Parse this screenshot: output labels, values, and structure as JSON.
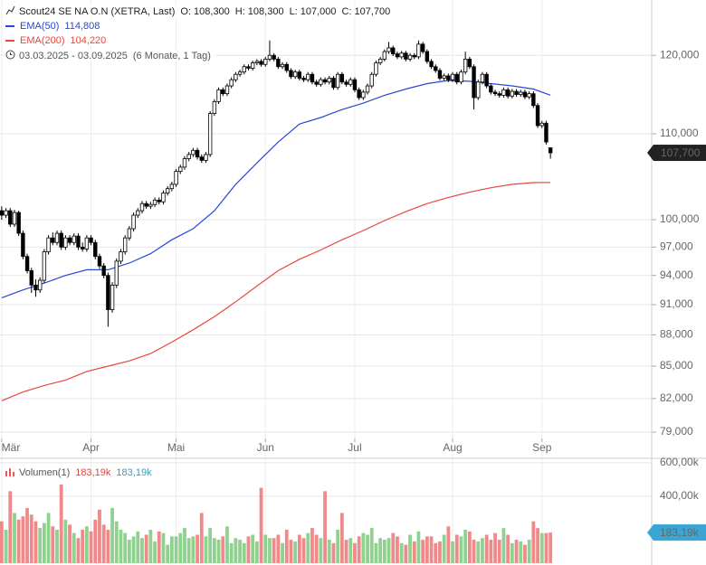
{
  "chart_data": {
    "type": "candlestick",
    "header": {
      "title": "Scout24 SE NA O.N (XETRA, Last)",
      "ohlc": [
        {
          "key": "O:",
          "value": "108,300"
        },
        {
          "key": "H:",
          "value": "108,300"
        },
        {
          "key": "L:",
          "value": "107,000"
        },
        {
          "key": "C:",
          "value": "107,700"
        }
      ],
      "ema": [
        {
          "name": "EMA(50)",
          "value": "114,808"
        },
        {
          "name": "EMA(200)",
          "value": "104,220"
        }
      ],
      "range": "03.03.2025 - 03.09.2025",
      "period": "(6 Monate, 1 Tag)"
    },
    "log_scale": true,
    "grid": true,
    "ylim": [
      78.45,
      127.6
    ],
    "yticks": [
      {
        "value": 79,
        "label": "79,000"
      },
      {
        "value": 82,
        "label": "82,000"
      },
      {
        "value": 85,
        "label": "85,000"
      },
      {
        "value": 88,
        "label": "88,000"
      },
      {
        "value": 91,
        "label": "91,000"
      },
      {
        "value": 94,
        "label": "94,000"
      },
      {
        "value": 97,
        "label": "97,000"
      },
      {
        "value": 100,
        "label": "100,000"
      },
      {
        "value": 110,
        "label": "110,000"
      },
      {
        "value": 120,
        "label": "120,000"
      }
    ],
    "xlim": [
      -0.4,
      152.8
    ],
    "xticks": [
      {
        "value": 0,
        "label": "Mär"
      },
      {
        "value": 21,
        "label": "Apr"
      },
      {
        "value": 41,
        "label": "Mai"
      },
      {
        "value": 62,
        "label": "Jun"
      },
      {
        "value": 83,
        "label": "Jul"
      },
      {
        "value": 106,
        "label": "Aug"
      },
      {
        "value": 127,
        "label": "Sep"
      }
    ],
    "last_price": {
      "value": 107.7,
      "label": "107,700"
    },
    "up_color": "#ffffff",
    "down_color": "#000000",
    "candles": [
      [
        101,
        101.5,
        100,
        100.5
      ],
      [
        100.5,
        101.3,
        100.2,
        101
      ],
      [
        101,
        101.3,
        99.2,
        99.5
      ],
      [
        99.5,
        101.1,
        99.2,
        100.8
      ],
      [
        100.8,
        101,
        98.2,
        98.5
      ],
      [
        98.5,
        98.8,
        95.7,
        96
      ],
      [
        96,
        96.3,
        94.2,
        94.5
      ],
      [
        94.5,
        94.8,
        92.2,
        93
      ],
      [
        93,
        93.6,
        91.8,
        92.5
      ],
      [
        92.5,
        93.8,
        92.2,
        93.5
      ],
      [
        93.5,
        96.8,
        93.2,
        96.5
      ],
      [
        96.5,
        98.3,
        96.2,
        98
      ],
      [
        98,
        98.6,
        97.2,
        97.5
      ],
      [
        97.5,
        98.8,
        97.2,
        98.5
      ],
      [
        98.5,
        98.8,
        96.7,
        97
      ],
      [
        97,
        98.3,
        96.7,
        98
      ],
      [
        98,
        98.3,
        97.2,
        97.5
      ],
      [
        97.5,
        98.5,
        97.2,
        98.2
      ],
      [
        98.2,
        98.5,
        96.7,
        97
      ],
      [
        97,
        97.5,
        96.5,
        96.8
      ],
      [
        96.8,
        98.3,
        96.5,
        98
      ],
      [
        98,
        98.3,
        97.2,
        97.5
      ],
      [
        97.5,
        97.8,
        95.7,
        96
      ],
      [
        96,
        96.3,
        94.7,
        95
      ],
      [
        95,
        95.3,
        93.7,
        94
      ],
      [
        94,
        94.3,
        88.8,
        90.5
      ],
      [
        90.5,
        93.3,
        90.2,
        93
      ],
      [
        93,
        95.8,
        92.7,
        95.5
      ],
      [
        95.5,
        96.8,
        95.2,
        96.5
      ],
      [
        96.5,
        98.3,
        96.2,
        98
      ],
      [
        98,
        99.3,
        97.7,
        99
      ],
      [
        99,
        100.8,
        98.7,
        100.5
      ],
      [
        100.5,
        101.3,
        100.2,
        101
      ],
      [
        101,
        102.1,
        100.7,
        101.8
      ],
      [
        101.8,
        102.1,
        101.2,
        101.5
      ],
      [
        101.5,
        102,
        101.2,
        101.7
      ],
      [
        101.7,
        102.5,
        101.4,
        102.2
      ],
      [
        102.2,
        102.5,
        101.7,
        102
      ],
      [
        102,
        103.3,
        101.7,
        103
      ],
      [
        103,
        103.8,
        102.7,
        103.5
      ],
      [
        103.5,
        104.3,
        103.2,
        104
      ],
      [
        104,
        105.8,
        103.7,
        105.5
      ],
      [
        105.5,
        106.3,
        105.2,
        106
      ],
      [
        106,
        107.3,
        105.7,
        107
      ],
      [
        107,
        107.8,
        106.7,
        107.5
      ],
      [
        107.5,
        108.3,
        107.2,
        108
      ],
      [
        108,
        108.3,
        106.9,
        107.2
      ],
      [
        107.2,
        107.5,
        106.5,
        106.8
      ],
      [
        106.8,
        107.8,
        106.5,
        107.5
      ],
      [
        107.5,
        112.8,
        107.2,
        112.5
      ],
      [
        112.5,
        114.3,
        112.2,
        114
      ],
      [
        114,
        115.8,
        113.7,
        115.5
      ],
      [
        115.5,
        115.8,
        114.7,
        115
      ],
      [
        115,
        116.3,
        114.7,
        116
      ],
      [
        116,
        117.1,
        115.7,
        116.8
      ],
      [
        116.8,
        117.8,
        116.5,
        117.5
      ],
      [
        117.5,
        118.1,
        117.2,
        117.8
      ],
      [
        117.8,
        118.8,
        117.5,
        118.5
      ],
      [
        118.5,
        118.8,
        118,
        118.3
      ],
      [
        118.3,
        119.3,
        118,
        119
      ],
      [
        119,
        119.5,
        118.7,
        119.2
      ],
      [
        119.2,
        119.5,
        118.5,
        118.8
      ],
      [
        118.8,
        119.8,
        118.5,
        119.5
      ],
      [
        119.5,
        122,
        119.2,
        120
      ],
      [
        120,
        120.3,
        119.2,
        119.5
      ],
      [
        119.5,
        119.8,
        118.2,
        118.5
      ],
      [
        118.5,
        119.1,
        118.2,
        118.8
      ],
      [
        118.8,
        119.1,
        117.7,
        118
      ],
      [
        118,
        118.3,
        116.9,
        117.2
      ],
      [
        117.2,
        118.1,
        116.9,
        117.8
      ],
      [
        117.8,
        118.1,
        116.7,
        117
      ],
      [
        117,
        117.3,
        116.5,
        116.8
      ],
      [
        116.8,
        117.8,
        116.5,
        117.5
      ],
      [
        117.5,
        117.8,
        116.2,
        116.5
      ],
      [
        116.5,
        116.8,
        115.9,
        116.2
      ],
      [
        116.2,
        117.1,
        115.9,
        116.8
      ],
      [
        116.8,
        117.1,
        116.2,
        116.5
      ],
      [
        116.5,
        117.3,
        116.2,
        117
      ],
      [
        117,
        117.3,
        115.5,
        115.8
      ],
      [
        115.8,
        117.8,
        115.5,
        117.5
      ],
      [
        117.5,
        117.8,
        116.2,
        116.5
      ],
      [
        116.5,
        116.8,
        115.9,
        116.2
      ],
      [
        116.2,
        117.1,
        115.9,
        116.8
      ],
      [
        116.8,
        117.1,
        115.2,
        115.5
      ],
      [
        115.5,
        115.8,
        114.2,
        114.5
      ],
      [
        114.5,
        115.5,
        114.2,
        115.2
      ],
      [
        115.2,
        116.3,
        114.9,
        116
      ],
      [
        116,
        117.8,
        115.7,
        117.5
      ],
      [
        117.5,
        119.3,
        117.2,
        119
      ],
      [
        119,
        119.8,
        118.7,
        119.5
      ],
      [
        119.5,
        120.8,
        119.2,
        120.5
      ],
      [
        120.5,
        121.8,
        120.2,
        121
      ],
      [
        121,
        121.3,
        119.9,
        120.2
      ],
      [
        120.2,
        120.5,
        119.5,
        119.8
      ],
      [
        119.8,
        120.6,
        119.5,
        120.3
      ],
      [
        120.3,
        120.6,
        119.2,
        119.5
      ],
      [
        119.5,
        120.3,
        119.2,
        120
      ],
      [
        120,
        120.3,
        119.5,
        119.8
      ],
      [
        119.8,
        122,
        119.5,
        121.5
      ],
      [
        121.5,
        121.8,
        120.2,
        120.5
      ],
      [
        120.5,
        120.8,
        118.9,
        119.2
      ],
      [
        119.2,
        119.5,
        118.2,
        118.5
      ],
      [
        118.5,
        118.8,
        117.7,
        118
      ],
      [
        118,
        118.3,
        116.7,
        117
      ],
      [
        117,
        117.6,
        116.7,
        117.3
      ],
      [
        117.3,
        117.6,
        116.5,
        116.8
      ],
      [
        116.8,
        117.8,
        116.5,
        117.5
      ],
      [
        117.5,
        117.8,
        116.2,
        116.5
      ],
      [
        116.5,
        118.1,
        116.2,
        117.8
      ],
      [
        117.8,
        120.5,
        117.5,
        119.5
      ],
      [
        119.5,
        119.8,
        118.2,
        118.5
      ],
      [
        118.5,
        118.8,
        113,
        114.5
      ],
      [
        114.5,
        116.8,
        114.2,
        116.5
      ],
      [
        116.5,
        117.8,
        116.2,
        117.5
      ],
      [
        117.5,
        117.8,
        115.7,
        116
      ],
      [
        116,
        116.3,
        114.9,
        115.2
      ],
      [
        115.2,
        115.5,
        114.7,
        115
      ],
      [
        115,
        115.3,
        114.5,
        114.8
      ],
      [
        114.8,
        115.8,
        114.5,
        115.5
      ],
      [
        115.5,
        115.8,
        114.4,
        114.7
      ],
      [
        114.7,
        115.6,
        114.4,
        115.3
      ],
      [
        115.3,
        115.6,
        114.6,
        114.9
      ],
      [
        114.9,
        115.5,
        114.6,
        115.2
      ],
      [
        115.2,
        115.5,
        114.3,
        114.6
      ],
      [
        114.6,
        115.3,
        114.3,
        115
      ],
      [
        115,
        115.3,
        113.2,
        113.5
      ],
      [
        113.5,
        113.8,
        110.7,
        111
      ],
      [
        111,
        111.6,
        110.7,
        111.3
      ],
      [
        111.3,
        111.6,
        108.7,
        109
      ],
      [
        108.3,
        108.3,
        107,
        107.7
      ]
    ],
    "series": [
      {
        "name": "EMA(50)",
        "color": "#2747d8",
        "x": [
          0,
          5,
          10,
          15,
          20,
          25,
          30,
          35,
          40,
          45,
          50,
          55,
          60,
          65,
          70,
          75,
          80,
          85,
          90,
          95,
          100,
          105,
          110,
          115,
          120,
          125,
          129
        ],
        "values": [
          91.7,
          92.5,
          93.2,
          94,
          94.6,
          94.6,
          95.3,
          96.3,
          97.8,
          99,
          101,
          104,
          106.5,
          109,
          111.2,
          112,
          113,
          113.8,
          114.8,
          115.6,
          116.3,
          116.7,
          116.6,
          116.3,
          116,
          115.6,
          114.808
        ]
      },
      {
        "name": "EMA(200)",
        "color": "#e8473a",
        "x": [
          0,
          5,
          10,
          15,
          20,
          25,
          30,
          35,
          40,
          45,
          50,
          55,
          60,
          65,
          70,
          75,
          80,
          85,
          90,
          95,
          100,
          105,
          110,
          115,
          120,
          125,
          129
        ],
        "values": [
          81.8,
          82.6,
          83.2,
          83.7,
          84.5,
          85,
          85.5,
          86.2,
          87.3,
          88.5,
          89.8,
          91.3,
          92.9,
          94.5,
          95.7,
          96.7,
          97.8,
          98.8,
          99.9,
          100.9,
          101.8,
          102.5,
          103.1,
          103.6,
          104,
          104.2,
          104.22
        ]
      }
    ],
    "volume": {
      "name": "Volumen(1)",
      "header_values": [
        "183,19k",
        "183,19k"
      ],
      "up_color": "#8fd18f",
      "down_color": "#f08a8a",
      "ylim": [
        0,
        610
      ],
      "yticks": [
        {
          "value": 400,
          "label": "400,00k"
        },
        {
          "value": 600,
          "label": "600,00k"
        }
      ],
      "last": {
        "value": 183.19,
        "label": "183,19k"
      },
      "values": [
        250,
        200,
        430,
        300,
        260,
        280,
        330,
        290,
        250,
        210,
        240,
        300,
        220,
        200,
        470,
        260,
        230,
        180,
        150,
        200,
        220,
        190,
        260,
        320,
        230,
        200,
        330,
        250,
        200,
        180,
        140,
        160,
        190,
        150,
        170,
        200,
        130,
        190,
        180,
        110,
        160,
        160,
        180,
        210,
        150,
        160,
        170,
        300,
        160,
        210,
        150,
        140,
        160,
        220,
        120,
        150,
        140,
        120,
        160,
        170,
        130,
        450,
        170,
        150,
        150,
        170,
        120,
        200,
        140,
        130,
        170,
        150,
        180,
        210,
        170,
        150,
        430,
        140,
        120,
        200,
        300,
        140,
        150,
        120,
        160,
        180,
        170,
        210,
        120,
        150,
        140,
        150,
        180,
        160,
        120,
        110,
        170,
        130,
        190,
        140,
        160,
        160,
        120,
        130,
        170,
        220,
        130,
        170,
        160,
        200,
        190,
        140,
        130,
        150,
        170,
        140,
        180,
        140,
        210,
        170,
        120,
        140,
        130,
        110,
        140,
        250,
        210,
        180,
        180,
        183.19
      ]
    }
  }
}
